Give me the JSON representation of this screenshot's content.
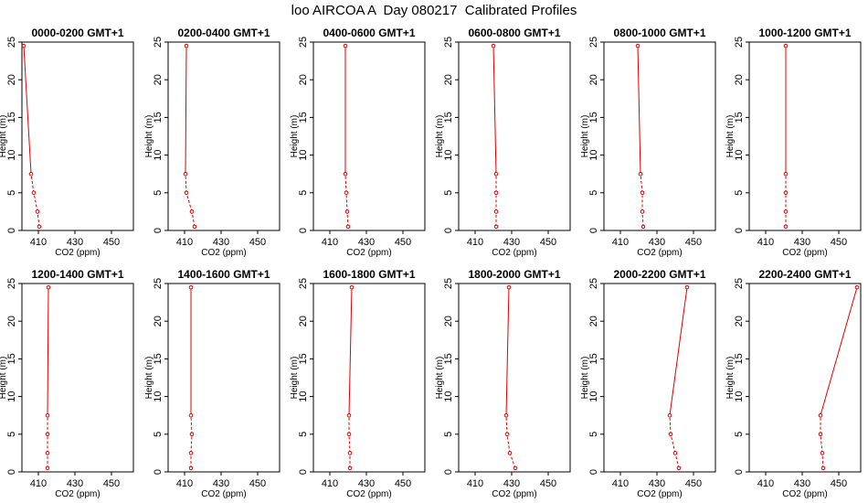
{
  "figure_title": "loo AIRCOA A  Day 080217  Calibrated Profiles",
  "chart_data": {
    "type": "line",
    "xlabel": "CO2 (ppm)",
    "ylabel": "Height (m)",
    "xlim": [
      401,
      462
    ],
    "ylim": [
      0,
      25
    ],
    "x_ticks": [
      410,
      430,
      450
    ],
    "y_ticks": [
      0,
      5,
      10,
      15,
      20,
      25
    ],
    "heights": [
      0.5,
      2.5,
      5,
      7.5,
      24.5
    ],
    "series_color": "#dd0000",
    "panels": [
      {
        "title": "0000-0200 GMT+1",
        "co2": [
          410.5,
          409.5,
          407.5,
          406,
          402
        ]
      },
      {
        "title": "0200-0400 GMT+1",
        "co2": [
          415.5,
          414,
          411,
          410.5,
          411
        ]
      },
      {
        "title": "0400-0600 GMT+1",
        "co2": [
          420,
          419.5,
          419,
          418.5,
          418.5
        ]
      },
      {
        "title": "0600-0800 GMT+1",
        "co2": [
          421.5,
          421.5,
          421.5,
          421.5,
          420
        ]
      },
      {
        "title": "0800-1000 GMT+1",
        "co2": [
          422.5,
          422,
          422,
          421,
          419.5
        ]
      },
      {
        "title": "1000-1200 GMT+1",
        "co2": [
          421,
          421,
          421,
          421,
          421
        ]
      },
      {
        "title": "1200-1400 GMT+1",
        "co2": [
          415,
          415,
          415,
          415,
          415.5
        ]
      },
      {
        "title": "1400-1600 GMT+1",
        "co2": [
          413.5,
          413.5,
          414,
          413.5,
          413.5
        ]
      },
      {
        "title": "1600-1800 GMT+1",
        "co2": [
          421,
          421,
          420.5,
          420.5,
          422
        ]
      },
      {
        "title": "1800-2000 GMT+1",
        "co2": [
          432,
          429,
          427.5,
          427,
          428.5
        ]
      },
      {
        "title": "2000-2200 GMT+1",
        "co2": [
          442,
          440,
          437.5,
          437,
          446.5
        ]
      },
      {
        "title": "2200-2400 GMT+1",
        "co2": [
          441.5,
          441,
          440,
          440,
          460
        ]
      }
    ]
  }
}
